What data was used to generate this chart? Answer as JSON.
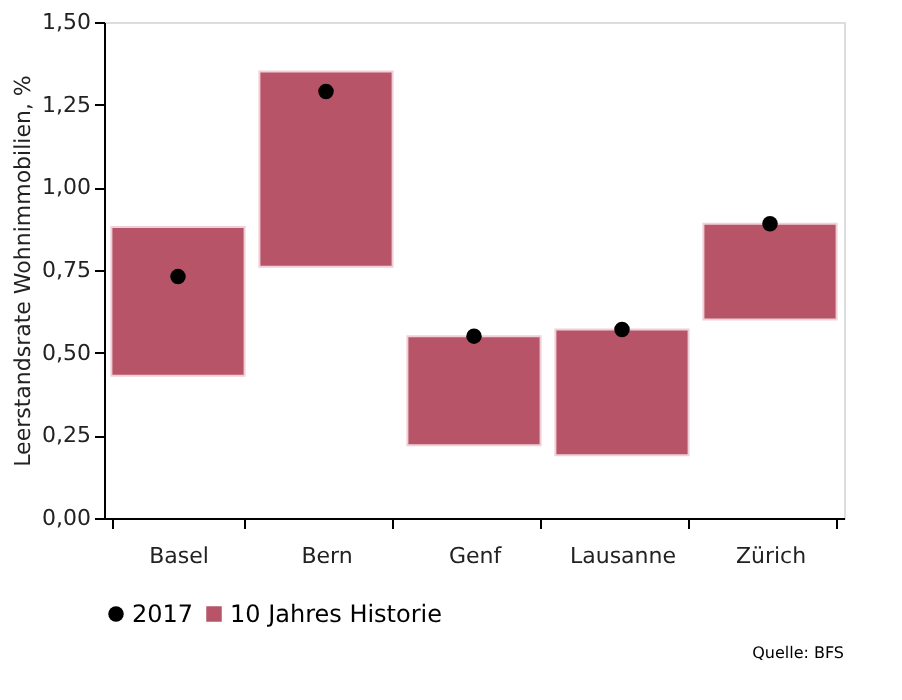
{
  "chart_data": {
    "type": "bar",
    "ylabel": "Leerstandsrate Wohnimmobilien, %",
    "categories": [
      "Basel",
      "Bern",
      "Genf",
      "Lausanne",
      "Zürich"
    ],
    "series": [
      {
        "name": "2017",
        "type": "scatter",
        "color": "#000000",
        "x": [
          "Basel",
          "Bern",
          "Genf",
          "Lausanne",
          "Zürich"
        ],
        "values": [
          0.73,
          1.29,
          0.55,
          0.57,
          0.89
        ]
      },
      {
        "name": "10 Jahres Historie",
        "color": "#b85468",
        "base": [
          0.43,
          0.76,
          0.22,
          0.19,
          0.6
        ],
        "values": [
          0.45,
          0.59,
          0.33,
          0.38,
          0.29
        ]
      }
    ],
    "ylim": [
      0,
      1.5
    ],
    "yticks": [
      {
        "value": 0,
        "label": "0,00"
      },
      {
        "value": 0.25,
        "label": "0,25"
      },
      {
        "value": 0.5,
        "label": "0,50"
      },
      {
        "value": 0.75,
        "label": "0,75"
      },
      {
        "value": 1.0,
        "label": "1,00"
      },
      {
        "value": 1.25,
        "label": "1,25"
      },
      {
        "value": 1.5,
        "label": "1,50"
      }
    ],
    "grid": false,
    "legend": "bottom left",
    "annotations": [
      "Quelle: BFS"
    ]
  }
}
